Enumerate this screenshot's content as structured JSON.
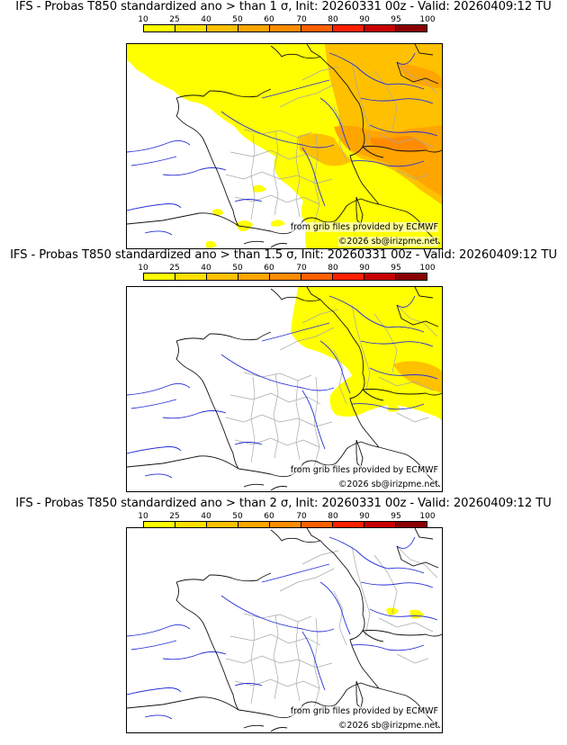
{
  "panels": [
    {
      "title": "IFS - Probas T850  standardized ano > than 1 σ, Init: 20260331 00z - Valid: 20260409:12 TU",
      "threshold_sigma": 1,
      "coverage": "yellow-orange over eastern France, Switzerland, Germany, northern Italy; orange peak over the Alps",
      "credit": "from grib files provided by ECMWF",
      "copyright": "©2026 sb@irizpme.net"
    },
    {
      "title": "IFS - Probas T850  standardized ano > than 1.5 σ, Init: 20260331 00z - Valid: 20260409:12 TU",
      "threshold_sigma": 1.5,
      "coverage": "yellow over Germany, Switzerland and northern Italy; light orange over the eastern Alps",
      "credit": "from grib files provided by ECMWF",
      "copyright": "©2026 sb@irizpme.net"
    },
    {
      "title": "IFS - Probas T850  standardized ano > than 2 σ, Init: 20260331 00z - Valid: 20260409:12 TU",
      "threshold_sigma": 2,
      "coverage": "small yellow patches over the Alps only",
      "credit": "from grib files provided by ECMWF",
      "copyright": "©2026 sb@irizpme.net"
    }
  ],
  "colorbar": {
    "ticks": [
      "10",
      "25",
      "40",
      "50",
      "60",
      "70",
      "80",
      "90",
      "95",
      "100"
    ],
    "colors": [
      "#ffff00",
      "#ffe000",
      "#ffc000",
      "#ffa500",
      "#ff8c00",
      "#ff6000",
      "#ff2000",
      "#c80000",
      "#8b0000"
    ]
  },
  "map_colors": {
    "coast": "#000000",
    "border": "#000000",
    "regions": "#a0a0a0",
    "rivers": "#2020d0"
  }
}
